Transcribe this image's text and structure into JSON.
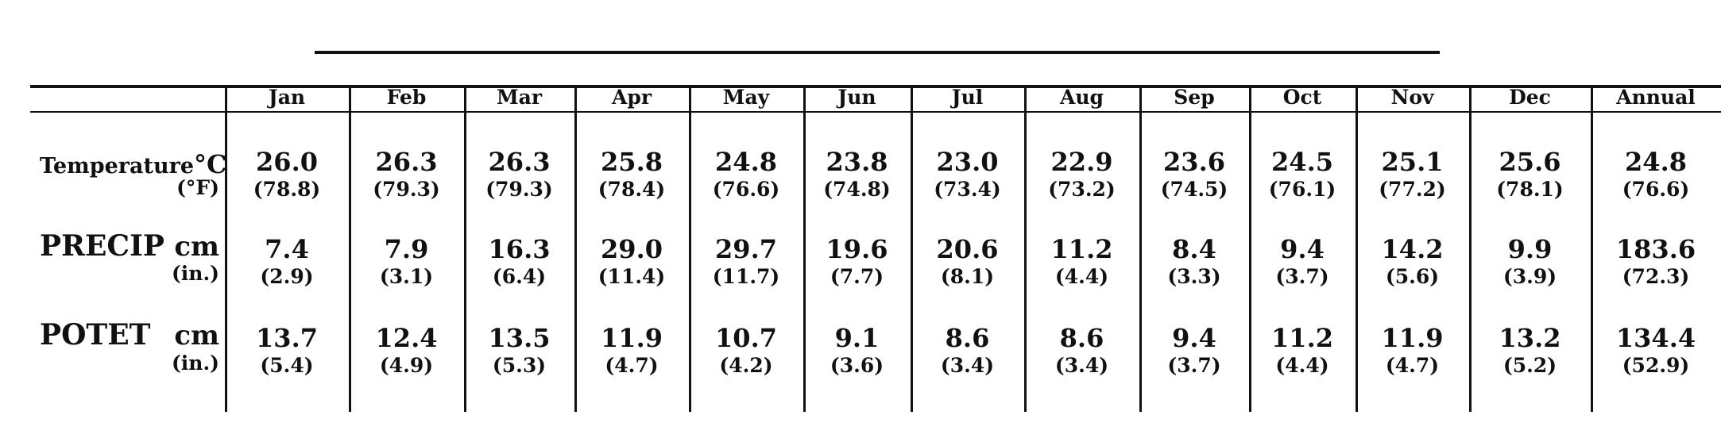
{
  "columns": [
    "Jan",
    "Feb",
    "Mar",
    "Apr",
    "May",
    "Jun",
    "Jul",
    "Aug",
    "Sep",
    "Oct",
    "Nov",
    "Dec",
    "Annual"
  ],
  "rows": [
    {
      "label": "Temperature",
      "unit": "°C",
      "alt_unit": "(°F)",
      "values": [
        "26.0",
        "26.3",
        "26.3",
        "25.8",
        "24.8",
        "23.8",
        "23.0",
        "22.9",
        "23.6",
        "24.5",
        "25.1",
        "25.6",
        "24.8"
      ],
      "alt_values": [
        "(78.8)",
        "(79.3)",
        "(79.3)",
        "(78.4)",
        "(76.6)",
        "(74.8)",
        "(73.4)",
        "(73.2)",
        "(74.5)",
        "(76.1)",
        "(77.2)",
        "(78.1)",
        "(76.6)"
      ]
    },
    {
      "label": "PRECIP",
      "unit": "cm",
      "alt_unit": "(in.)",
      "values": [
        "7.4",
        "7.9",
        "16.3",
        "29.0",
        "29.7",
        "19.6",
        "20.6",
        "11.2",
        "8.4",
        "9.4",
        "14.2",
        "9.9",
        "183.6"
      ],
      "alt_values": [
        "(2.9)",
        "(3.1)",
        "(6.4)",
        "(11.4)",
        "(11.7)",
        "(7.7)",
        "(8.1)",
        "(4.4)",
        "(3.3)",
        "(3.7)",
        "(5.6)",
        "(3.9)",
        "(72.3)"
      ]
    },
    {
      "label": "POTET",
      "unit": "cm",
      "alt_unit": "(in.)",
      "values": [
        "13.7",
        "12.4",
        "13.5",
        "11.9",
        "10.7",
        "9.1",
        "8.6",
        "8.6",
        "9.4",
        "11.2",
        "11.9",
        "13.2",
        "134.4"
      ],
      "alt_values": [
        "(5.4)",
        "(4.9)",
        "(5.3)",
        "(4.7)",
        "(4.2)",
        "(3.6)",
        "(3.4)",
        "(3.4)",
        "(3.7)",
        "(4.4)",
        "(4.7)",
        "(5.2)",
        "(52.9)"
      ]
    }
  ]
}
